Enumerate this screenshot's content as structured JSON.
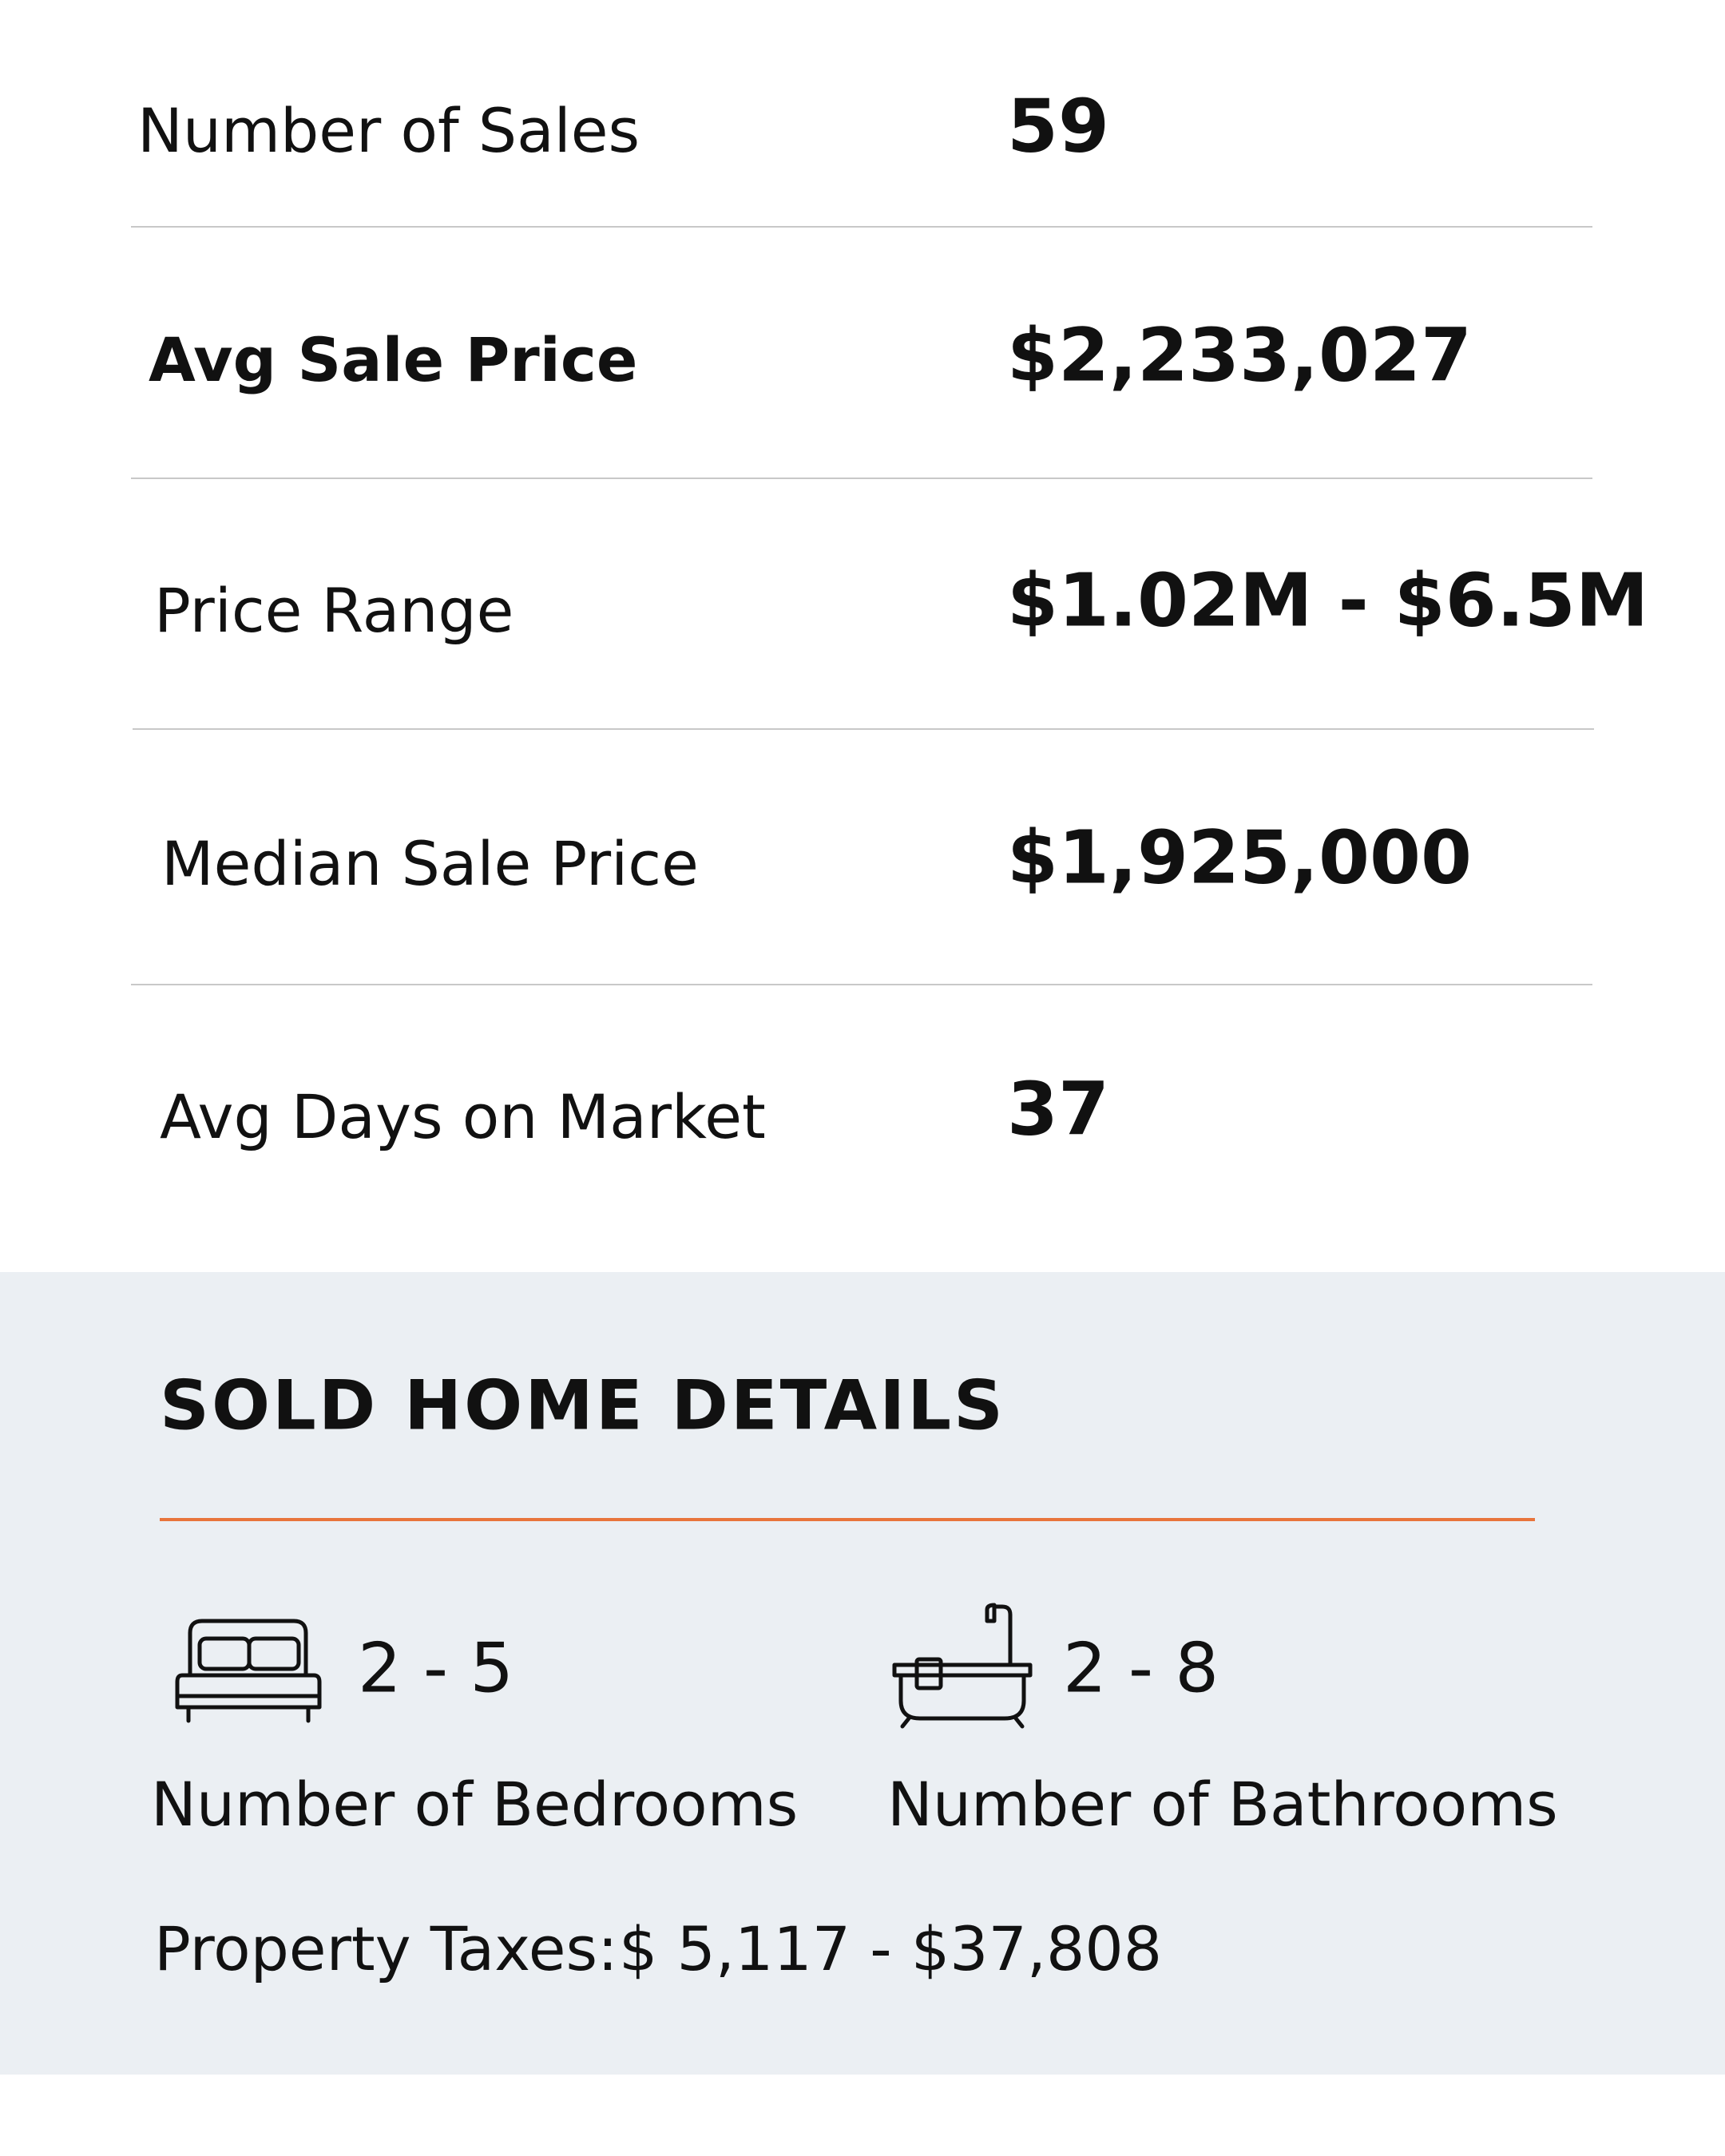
{
  "stats": {
    "rows": [
      {
        "label": "Number of Sales",
        "value": "59"
      },
      {
        "label": "Avg Sale Price",
        "value": "$2,233,027"
      },
      {
        "label": "Price Range",
        "value": "$1.02M - $6.5M"
      },
      {
        "label": "Median Sale Price",
        "value": "$1,925,000"
      },
      {
        "label": "Avg Days on Market",
        "value": "37"
      }
    ]
  },
  "details": {
    "title": "SOLD HOME DETAILS",
    "bedrooms": {
      "value": "2 - 5",
      "label": "Number of Bedrooms"
    },
    "bathrooms": {
      "value": "2 - 8",
      "label": "Number of Bathrooms"
    },
    "property_taxes": {
      "label": "Property Taxes:",
      "value": "$ 5,117 - $37,808"
    }
  }
}
